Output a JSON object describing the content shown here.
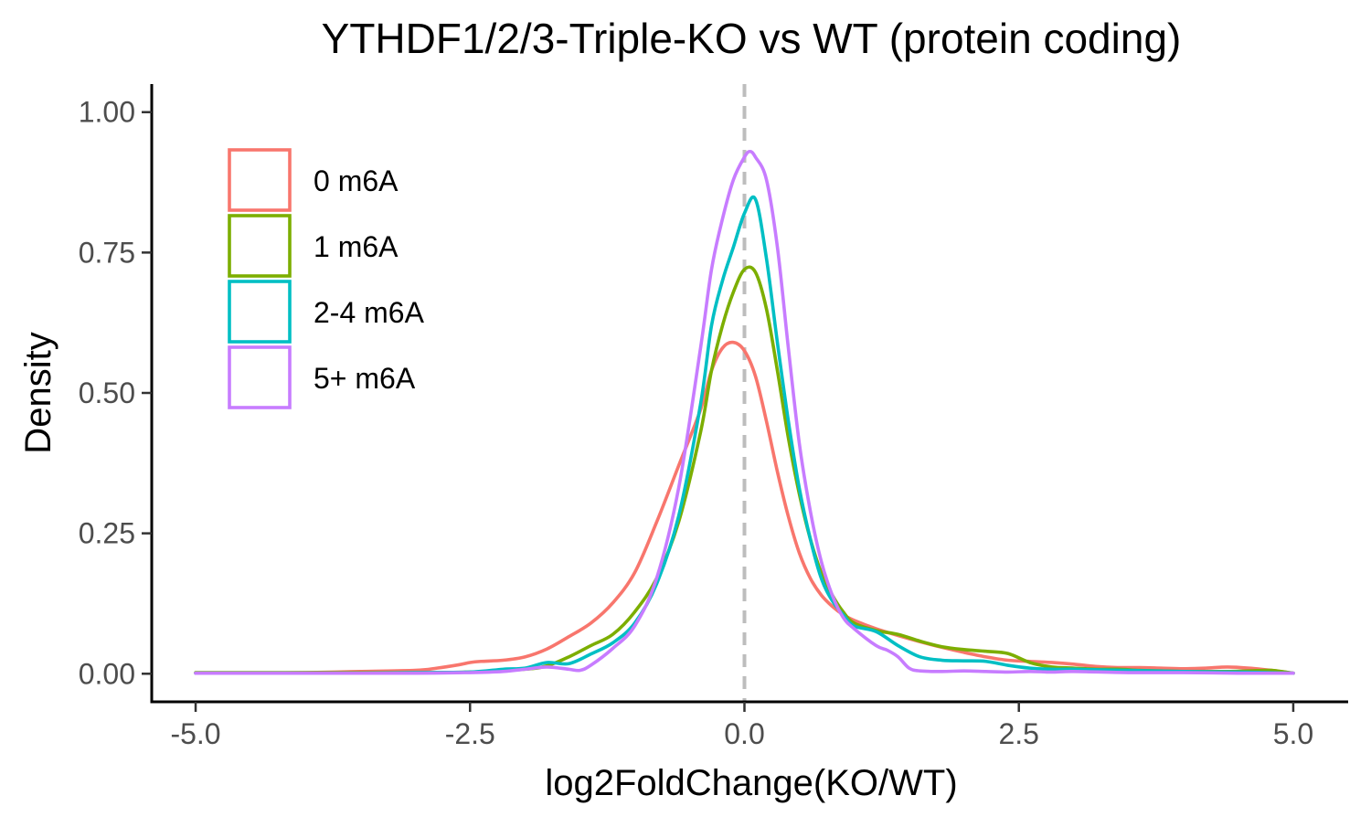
{
  "chart_data": {
    "type": "line",
    "subtype": "density",
    "title": "YTHDF1/2/3-Triple-KO vs WT (protein coding)",
    "xlabel": "log2FoldChange(KO/WT)",
    "ylabel": "Density",
    "xlim": [
      -5.4,
      5.5
    ],
    "ylim": [
      -0.05,
      1.05
    ],
    "x_ticks": [
      -5.0,
      -2.5,
      0.0,
      2.5,
      5.0
    ],
    "x_tick_labels": [
      "-5.0",
      "-2.5",
      "0.0",
      "2.5",
      "5.0"
    ],
    "y_ticks": [
      0.0,
      0.25,
      0.5,
      0.75,
      1.0
    ],
    "y_tick_labels": [
      "0.00",
      "0.25",
      "0.50",
      "0.75",
      "1.00"
    ],
    "grid": false,
    "legend_position": "top-left",
    "reference_line": {
      "x": 0.0,
      "style": "dashed",
      "color": "#bdbdbd"
    },
    "series": [
      {
        "name": "0 m6A",
        "color": "#F8766D",
        "x": [
          -5.0,
          -4.5,
          -4.0,
          -3.5,
          -3.0,
          -2.8,
          -2.6,
          -2.5,
          -2.4,
          -2.2,
          -2.0,
          -1.8,
          -1.6,
          -1.4,
          -1.2,
          -1.0,
          -0.8,
          -0.6,
          -0.4,
          -0.3,
          -0.2,
          -0.1,
          0.0,
          0.1,
          0.2,
          0.3,
          0.4,
          0.5,
          0.6,
          0.7,
          0.8,
          0.9,
          1.0,
          1.2,
          1.4,
          1.6,
          1.8,
          2.0,
          2.2,
          2.4,
          2.6,
          2.8,
          3.0,
          3.2,
          3.4,
          3.6,
          3.8,
          4.0,
          4.2,
          4.4,
          4.6,
          4.8,
          5.0
        ],
        "y": [
          0.001,
          0.001,
          0.002,
          0.004,
          0.006,
          0.01,
          0.016,
          0.02,
          0.022,
          0.024,
          0.03,
          0.044,
          0.066,
          0.09,
          0.126,
          0.18,
          0.27,
          0.37,
          0.47,
          0.54,
          0.58,
          0.59,
          0.575,
          0.53,
          0.45,
          0.36,
          0.28,
          0.215,
          0.17,
          0.14,
          0.12,
          0.105,
          0.095,
          0.08,
          0.068,
          0.057,
          0.047,
          0.038,
          0.03,
          0.024,
          0.022,
          0.02,
          0.017,
          0.013,
          0.011,
          0.011,
          0.01,
          0.009,
          0.01,
          0.012,
          0.01,
          0.006,
          0.001
        ]
      },
      {
        "name": "1 m6A",
        "color": "#7CAE00",
        "x": [
          -5.0,
          -4.5,
          -4.0,
          -3.5,
          -3.0,
          -2.5,
          -2.0,
          -1.8,
          -1.6,
          -1.4,
          -1.2,
          -1.0,
          -0.8,
          -0.6,
          -0.4,
          -0.3,
          -0.2,
          -0.1,
          0.0,
          0.1,
          0.2,
          0.3,
          0.4,
          0.5,
          0.6,
          0.7,
          0.8,
          0.9,
          1.0,
          1.2,
          1.4,
          1.6,
          1.8,
          2.0,
          2.2,
          2.4,
          2.6,
          2.8,
          3.0,
          3.2,
          3.4,
          3.6,
          3.8,
          4.0,
          4.2,
          4.4,
          4.6,
          4.8,
          5.0
        ],
        "y": [
          0.002,
          0.002,
          0.002,
          0.002,
          0.002,
          0.003,
          0.008,
          0.014,
          0.03,
          0.05,
          0.07,
          0.11,
          0.17,
          0.27,
          0.43,
          0.54,
          0.62,
          0.68,
          0.72,
          0.715,
          0.65,
          0.54,
          0.42,
          0.32,
          0.24,
          0.18,
          0.14,
          0.11,
          0.09,
          0.077,
          0.07,
          0.058,
          0.048,
          0.043,
          0.04,
          0.036,
          0.02,
          0.012,
          0.01,
          0.008,
          0.008,
          0.006,
          0.005,
          0.004,
          0.004,
          0.004,
          0.005,
          0.006,
          0.001
        ]
      },
      {
        "name": "2-4 m6A",
        "color": "#00BFC4",
        "x": [
          -5.0,
          -4.5,
          -4.0,
          -3.5,
          -3.0,
          -2.5,
          -2.2,
          -2.0,
          -1.8,
          -1.6,
          -1.4,
          -1.2,
          -1.0,
          -0.8,
          -0.6,
          -0.4,
          -0.3,
          -0.2,
          -0.1,
          0.0,
          0.1,
          0.2,
          0.3,
          0.4,
          0.5,
          0.6,
          0.7,
          0.8,
          0.9,
          1.0,
          1.2,
          1.4,
          1.6,
          1.8,
          2.0,
          2.2,
          2.4,
          2.6,
          2.8,
          3.0,
          3.5,
          4.0,
          4.5,
          5.0
        ],
        "y": [
          0.001,
          0.001,
          0.001,
          0.001,
          0.002,
          0.003,
          0.008,
          0.01,
          0.02,
          0.018,
          0.035,
          0.055,
          0.09,
          0.16,
          0.28,
          0.48,
          0.62,
          0.7,
          0.76,
          0.82,
          0.845,
          0.74,
          0.59,
          0.45,
          0.33,
          0.24,
          0.17,
          0.13,
          0.105,
          0.085,
          0.075,
          0.05,
          0.03,
          0.024,
          0.023,
          0.022,
          0.015,
          0.01,
          0.008,
          0.008,
          0.006,
          0.004,
          0.003,
          0.001
        ]
      },
      {
        "name": "5+ m6A",
        "color": "#C77CFF",
        "x": [
          -5.0,
          -4.5,
          -4.0,
          -3.5,
          -3.0,
          -2.5,
          -2.2,
          -2.0,
          -1.8,
          -1.6,
          -1.5,
          -1.4,
          -1.2,
          -1.0,
          -0.8,
          -0.6,
          -0.4,
          -0.3,
          -0.2,
          -0.1,
          0.0,
          0.05,
          0.1,
          0.2,
          0.3,
          0.4,
          0.5,
          0.6,
          0.7,
          0.8,
          0.9,
          1.0,
          1.2,
          1.3,
          1.4,
          1.5,
          1.6,
          1.8,
          2.0,
          2.2,
          2.4,
          2.6,
          2.8,
          3.0,
          3.5,
          4.0,
          4.5,
          5.0
        ],
        "y": [
          0.001,
          0.001,
          0.001,
          0.001,
          0.001,
          0.002,
          0.004,
          0.008,
          0.012,
          0.008,
          0.006,
          0.015,
          0.045,
          0.085,
          0.17,
          0.33,
          0.58,
          0.72,
          0.81,
          0.88,
          0.92,
          0.93,
          0.92,
          0.88,
          0.76,
          0.58,
          0.41,
          0.29,
          0.2,
          0.14,
          0.1,
          0.08,
          0.05,
          0.042,
          0.03,
          0.01,
          0.005,
          0.004,
          0.005,
          0.004,
          0.003,
          0.004,
          0.003,
          0.004,
          0.002,
          0.002,
          0.001,
          0.001
        ]
      }
    ]
  }
}
